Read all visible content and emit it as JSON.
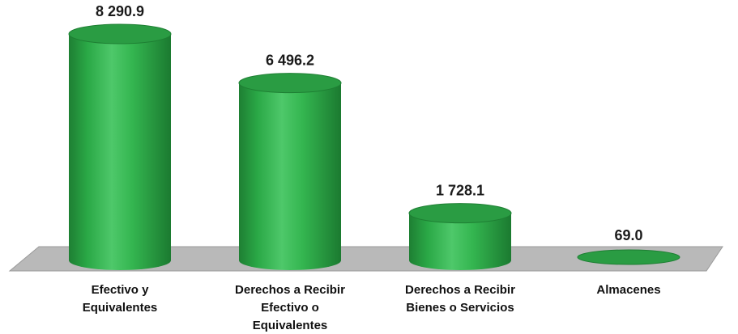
{
  "chart_data": {
    "type": "bar",
    "categories": [
      [
        "Efectivo y",
        "Equivalentes"
      ],
      [
        "Derechos a Recibir",
        "Efectivo o",
        "Equivalentes"
      ],
      [
        "Derechos a Recibir",
        "Bienes o Servicios"
      ],
      [
        "Almacenes"
      ]
    ],
    "values": [
      8290.9,
      6496.2,
      1728.1,
      69.0
    ],
    "value_labels": [
      "8 290.9",
      "6 496.2",
      "1 728.1",
      "69.0"
    ],
    "title": "",
    "xlabel": "",
    "ylabel": "",
    "ylim": [
      0,
      8290.9
    ],
    "grid": false,
    "legend": "none",
    "style": "3d-cylinder",
    "colors": {
      "bar": "#2fb34a",
      "bar_dark": "#1e7f33",
      "bar_light": "#5fd27a",
      "top": "#2a9c43",
      "floor": "#b9b9b9",
      "floor_edge": "#8f8f8f"
    }
  }
}
